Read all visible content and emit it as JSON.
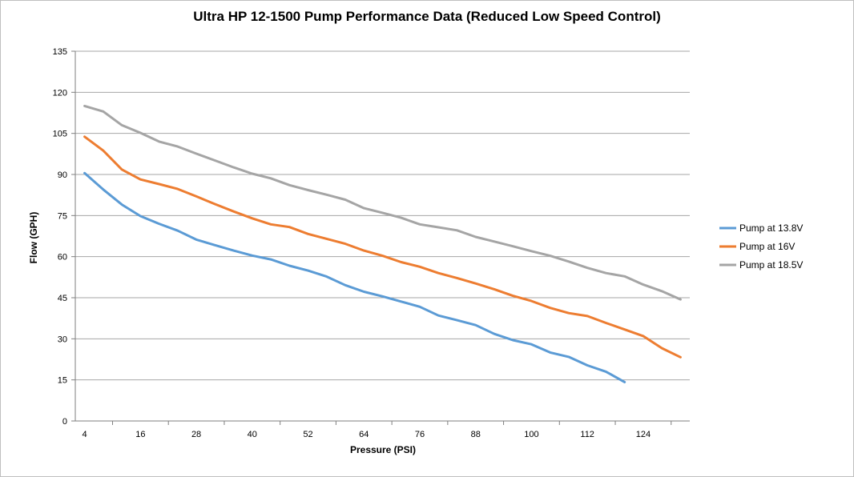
{
  "chart_data": {
    "type": "line",
    "title": "Ultra HP 12-1500  Pump Performance Data (Reduced Low Speed  Control)",
    "xlabel": "Pressure (PSI)",
    "ylabel": "Flow (GPH)",
    "xlim": [
      2,
      134
    ],
    "ylim": [
      0,
      135
    ],
    "x_ticks": [
      4,
      16,
      28,
      40,
      52,
      64,
      76,
      88,
      100,
      112,
      124
    ],
    "y_ticks": [
      0,
      15,
      30,
      45,
      60,
      75,
      90,
      105,
      120,
      135
    ],
    "grid": "horizontal",
    "legend_position": "right",
    "series": [
      {
        "name": "Pump at 13.8V",
        "color": "#5b9bd5",
        "x": [
          4,
          8,
          12,
          16,
          20,
          24,
          28,
          32,
          36,
          40,
          44,
          48,
          52,
          56,
          60,
          64,
          68,
          72,
          76,
          80,
          84,
          88,
          92,
          96,
          100,
          104,
          108,
          112,
          116,
          120
        ],
        "y": [
          90.5,
          84.5,
          79,
          74.8,
          72,
          69.5,
          66.2,
          64.2,
          62.2,
          60.4,
          59,
          56.7,
          54.9,
          52.7,
          49.6,
          47.2,
          45.5,
          43.6,
          41.7,
          38.5,
          36.8,
          35,
          31.8,
          29.5,
          28,
          25,
          23.4,
          20.3,
          18,
          14.2
        ]
      },
      {
        "name": "Pump at 16V",
        "color": "#ed7d31",
        "x": [
          4,
          8,
          12,
          16,
          20,
          24,
          28,
          32,
          36,
          40,
          44,
          48,
          52,
          56,
          60,
          64,
          68,
          72,
          76,
          80,
          84,
          88,
          92,
          96,
          100,
          104,
          108,
          112,
          116,
          120,
          124,
          128,
          132
        ],
        "y": [
          103.8,
          98.7,
          91.8,
          88.2,
          86.5,
          84.7,
          82,
          79.2,
          76.5,
          74,
          71.8,
          70.8,
          68.3,
          66.5,
          64.7,
          62.2,
          60.3,
          58,
          56.3,
          54,
          52.2,
          50.2,
          48.1,
          45.7,
          43.8,
          41.3,
          39.4,
          38.3,
          35.8,
          33.4,
          31,
          26.6,
          23.3
        ]
      },
      {
        "name": "Pump at 18.5V",
        "color": "#a5a5a5",
        "x": [
          4,
          8,
          12,
          16,
          20,
          24,
          28,
          32,
          36,
          40,
          44,
          48,
          52,
          56,
          60,
          64,
          68,
          72,
          76,
          80,
          84,
          88,
          92,
          96,
          100,
          104,
          108,
          112,
          116,
          120,
          124,
          128,
          132
        ],
        "y": [
          115,
          113,
          108,
          105.2,
          102,
          100.2,
          97.6,
          95.1,
          92.6,
          90.3,
          88.6,
          86.1,
          84.3,
          82.6,
          80.8,
          77.7,
          76,
          74.2,
          71.8,
          70.7,
          69.6,
          67.2,
          65.5,
          63.8,
          62,
          60.3,
          58.2,
          55.9,
          54,
          52.8,
          49.8,
          47.4,
          44.4
        ]
      }
    ]
  }
}
